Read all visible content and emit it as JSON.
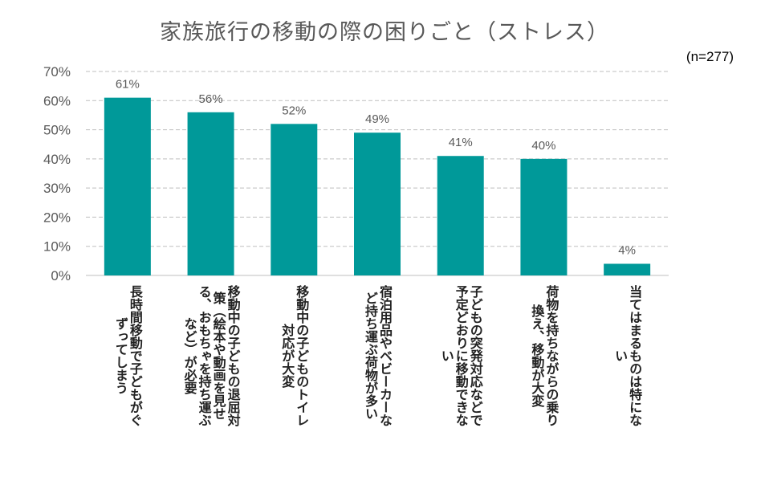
{
  "chart_data": {
    "type": "bar",
    "title": "家族旅行の移動の際の困りごと（ストレス）",
    "note": "(n=277)",
    "categories": [
      "長時間移動で子どもがぐずってしまう",
      "移動中の子どもの退屈対策（絵本や動画を見せる、おもちゃを持ち運ぶなど）が必要",
      "移動中の子どものトイレ対応が大変",
      "宿泊用品やベビーカーなど持ち運ぶ荷物が多い",
      "子どもの突発対応などで予定どおりに移動できない",
      "荷物を持ちながらの乗り換え、移動が大変",
      "当てはまるものは特にない"
    ],
    "values": [
      61,
      56,
      52,
      49,
      41,
      40,
      4
    ],
    "data_labels": [
      "61%",
      "56%",
      "52%",
      "49%",
      "41%",
      "40%",
      "4%"
    ],
    "ylim": [
      0,
      70
    ],
    "yticks": [
      "0%",
      "10%",
      "20%",
      "30%",
      "40%",
      "50%",
      "60%",
      "70%"
    ],
    "grid": true,
    "bar_color": "#009999"
  }
}
